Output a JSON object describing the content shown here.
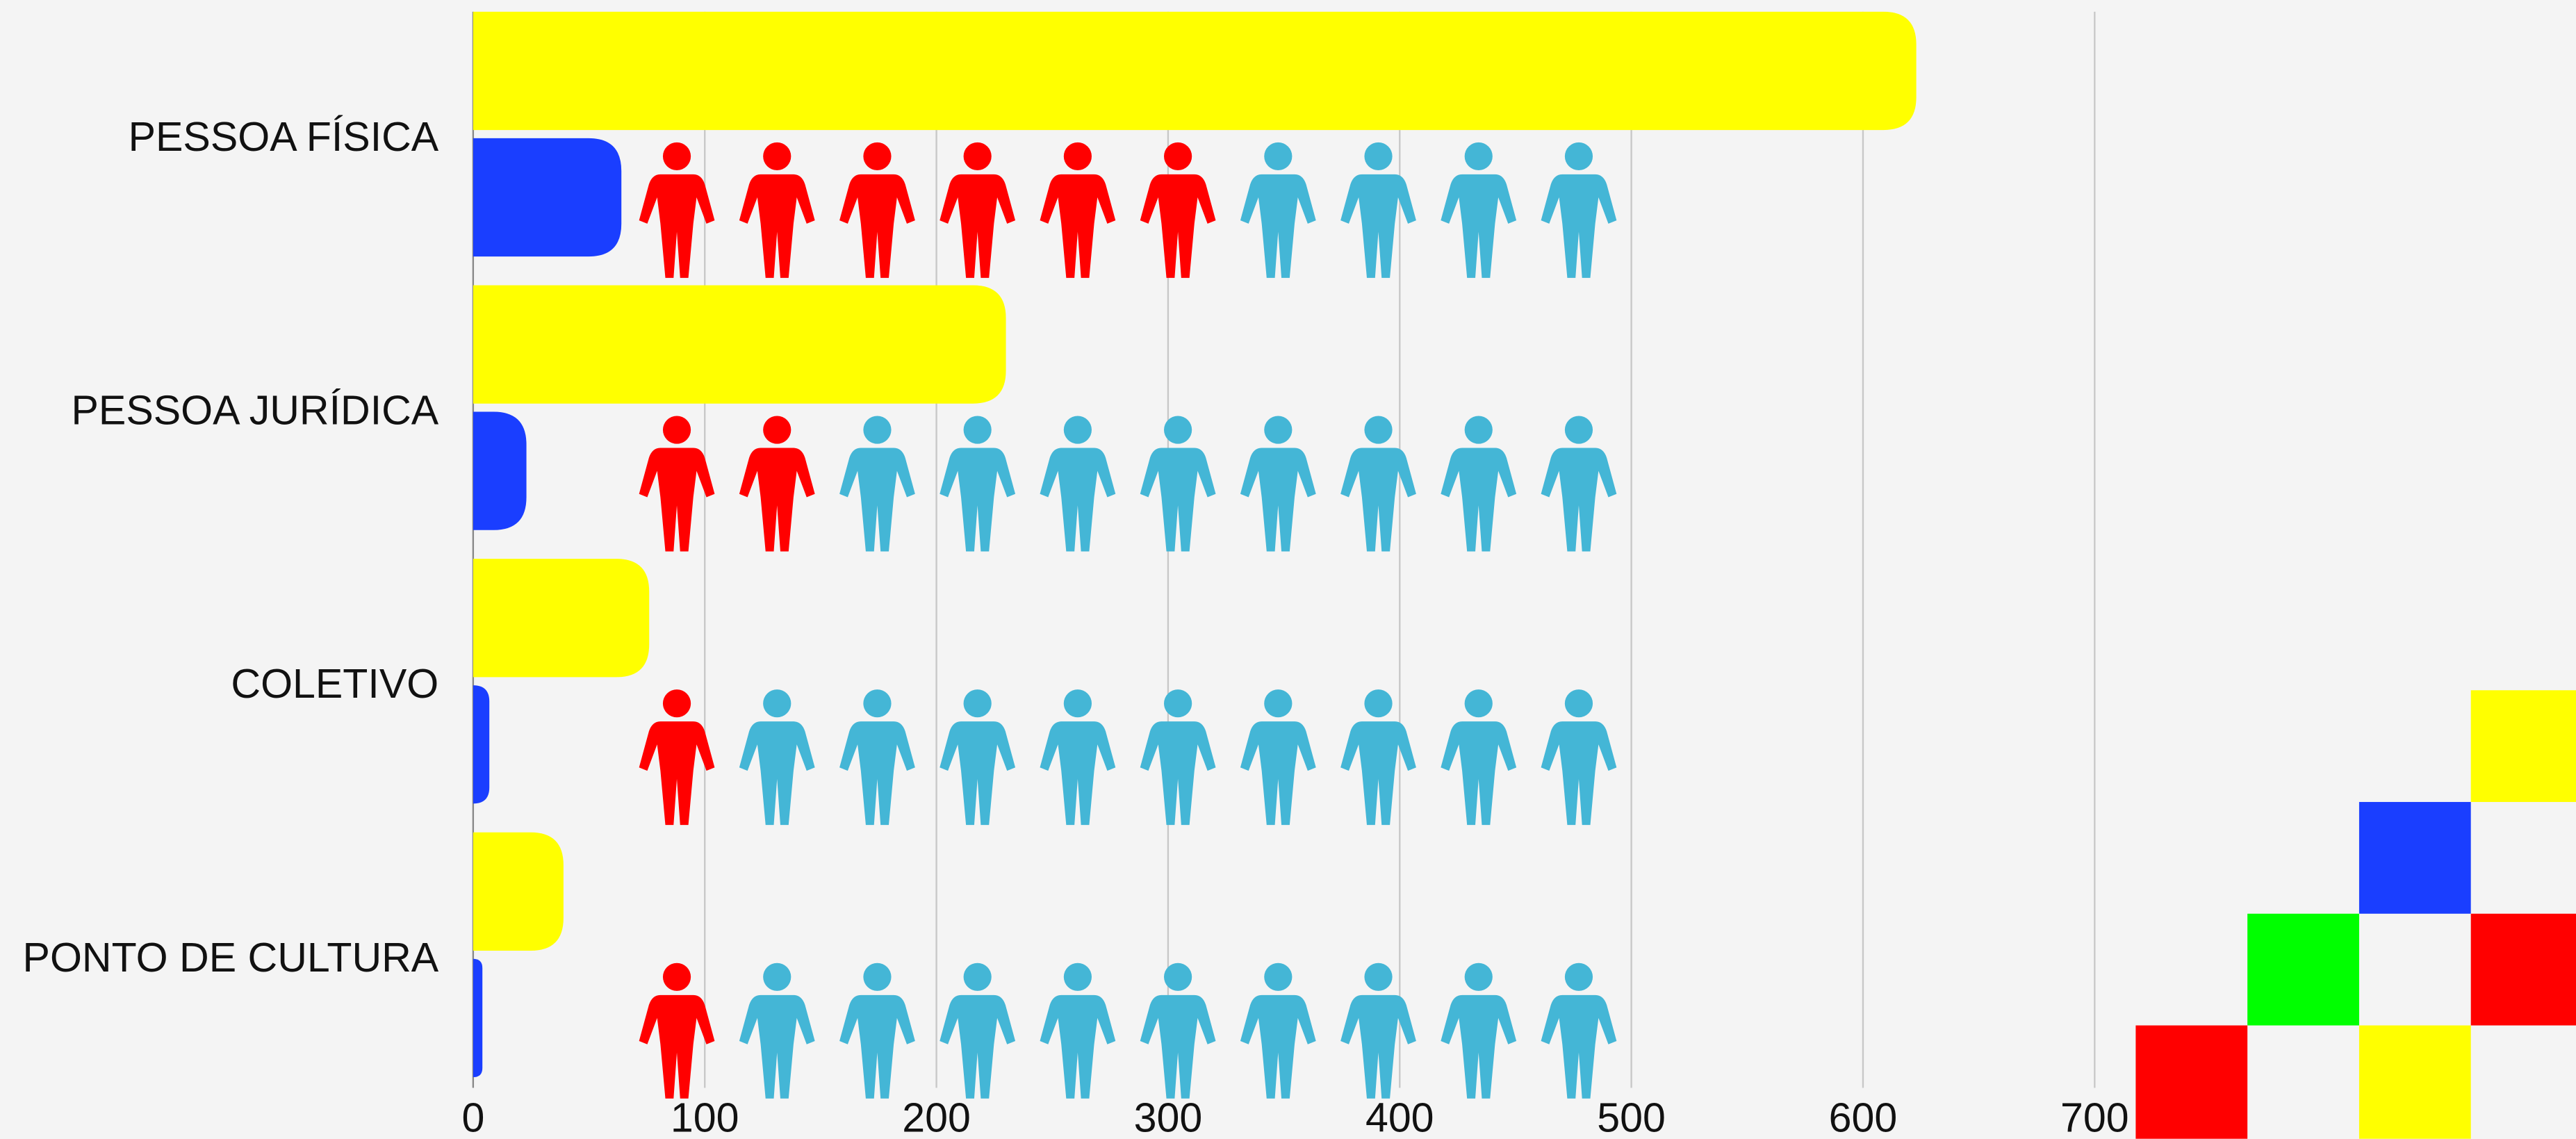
{
  "chart_data": {
    "type": "bar",
    "orientation": "horizontal",
    "categories": [
      "PESSOA FÍSICA",
      "PESSOA JURÍDICA",
      "COLETIVO",
      "PONTO DE CULTURA"
    ],
    "series": [
      {
        "color": "#ffff00",
        "values": [
          623,
          230,
          76,
          39
        ]
      },
      {
        "color": "#1a3eff",
        "values": [
          64,
          23,
          7,
          4
        ]
      }
    ],
    "pictogram": {
      "total": 10,
      "highlighted": [
        6,
        2,
        1,
        1
      ],
      "highlight_color": "#ff0000",
      "base_color": "#44b6d6"
    },
    "xlim": [
      0,
      700
    ],
    "xticks": [
      0,
      100,
      200,
      300,
      400,
      500,
      600,
      700
    ],
    "grid": true
  }
}
